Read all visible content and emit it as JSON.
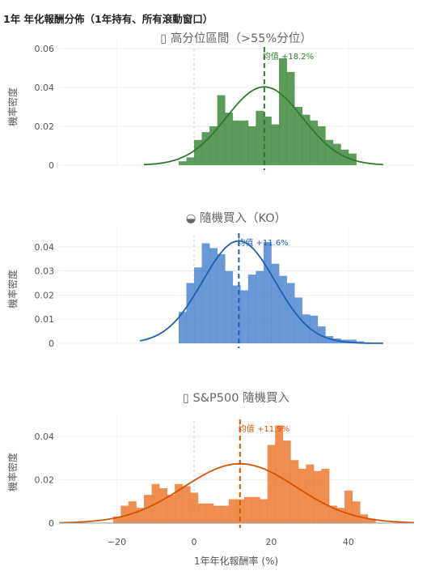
{
  "figure": {
    "title": "1年 年化報酬分佈（1年持有、所有滾動窗口）",
    "xlabel": "1年年化報酬率 (%)"
  },
  "chart_data": [
    {
      "type": "bar",
      "title": "▯ 高分位區間（>55%分位）",
      "ylabel": "機率密度",
      "color": "#3f8a3f",
      "curve_color": "#2d7a2d",
      "ylim": [
        0,
        0.06
      ],
      "yticks": [
        "0",
        "0.02",
        "0.04",
        "0.06"
      ],
      "xlim": [
        -35,
        57
      ],
      "bin_start": -4,
      "bin_width": 2,
      "values": [
        0.002,
        0.004,
        0.013,
        0.017,
        0.02,
        0.036,
        0.027,
        0.023,
        0.023,
        0.02,
        0.028,
        0.025,
        0.021,
        0.055,
        0.048,
        0.03,
        0.026,
        0.023,
        0.02,
        0.013,
        0.011,
        0.008,
        0.006,
        0.0
      ],
      "mean_label": "均值 +18.2%",
      "mean": 18.2,
      "curve": {
        "mu": 18.2,
        "sigma": 9.9,
        "from": -13,
        "to": 49
      }
    },
    {
      "type": "bar",
      "title": "◒ 隨機買入（KO）",
      "ylabel": "機率密度",
      "color": "#4f86cf",
      "curve_color": "#1f5fb0",
      "ylim": [
        0,
        0.045
      ],
      "yticks": [
        "0",
        "0.01",
        "0.02",
        "0.03",
        "0.04"
      ],
      "xlim": [
        -35,
        57
      ],
      "bin_start": -4,
      "bin_width": 2,
      "values": [
        0.013,
        0.025,
        0.0315,
        0.0415,
        0.0395,
        0.037,
        0.03,
        0.024,
        0.022,
        0.0285,
        0.03,
        0.042,
        0.033,
        0.028,
        0.025,
        0.019,
        0.012,
        0.0115,
        0.007,
        0.003,
        0.002,
        0.0015,
        0.0015,
        0.0008
      ],
      "mean_label": "均值 +11.6%",
      "mean": 11.6,
      "curve": {
        "mu": 11.6,
        "sigma": 9.4,
        "from": -14,
        "to": 49
      }
    },
    {
      "type": "bar",
      "title": "▯ S&P500 隨機買入",
      "ylabel": "機率密度",
      "color": "#ec7a33",
      "curve_color": "#d35400",
      "ylim": [
        0,
        0.047
      ],
      "yticks": [
        "0",
        "0.02",
        "0.04"
      ],
      "xlim": [
        -35,
        57
      ],
      "bin_start": -21,
      "bin_width": 2,
      "values": [
        0.003,
        0.008,
        0.01,
        0.007,
        0.013,
        0.018,
        0.016,
        0.013,
        0.018,
        0.017,
        0.014,
        0.009,
        0.009,
        0.008,
        0.008,
        0.011,
        0.011,
        0.012,
        0.012,
        0.011,
        0.036,
        0.045,
        0.038,
        0.029,
        0.025,
        0.027,
        0.024,
        0.025,
        0.008,
        0.007,
        0.015,
        0.01,
        0.004,
        0.002
      ],
      "mean_label": "均值 +11.9%",
      "mean": 11.9,
      "curve": {
        "mu": 11.9,
        "sigma": 14.6,
        "from": -35,
        "to": 57
      }
    }
  ],
  "xticks": [
    "−20",
    "0",
    "20",
    "40"
  ]
}
